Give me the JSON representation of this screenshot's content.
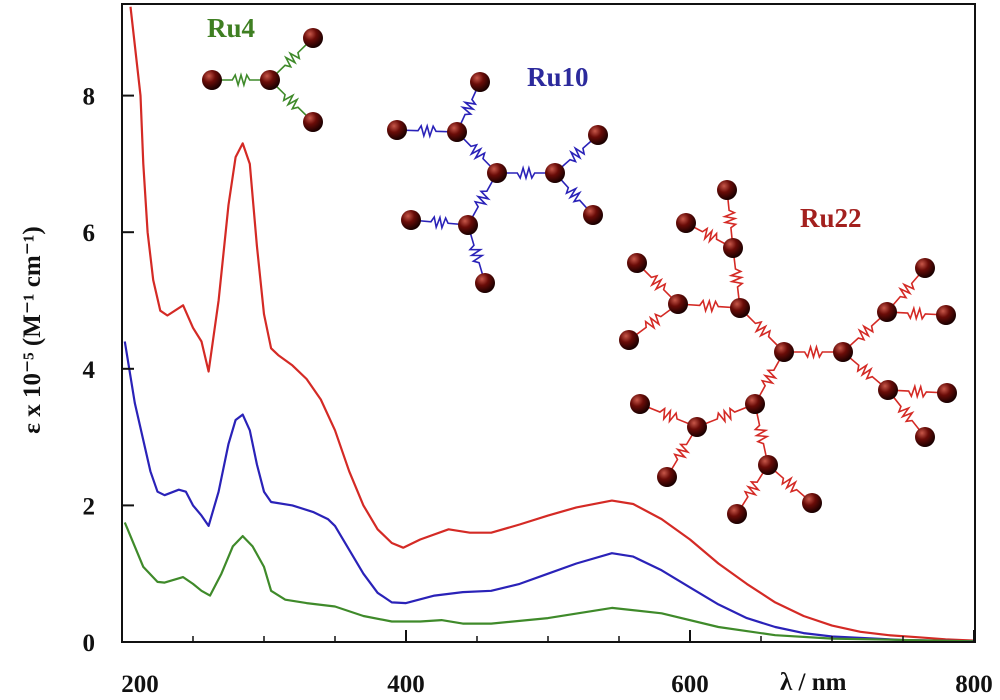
{
  "chart_data": {
    "type": "line",
    "title": "",
    "xlabel": "λ / nm",
    "ylabel": "ε x 10⁻⁵ (M⁻¹ cm⁻¹)",
    "xlim": [
      200,
      800
    ],
    "ylim": [
      0,
      9.3
    ],
    "xticks": [
      "200",
      "400",
      "600",
      "800"
    ],
    "yticks": [
      "0",
      "2",
      "4",
      "6",
      "8"
    ],
    "grid": false,
    "series": [
      {
        "name": "Ru22",
        "color": "#d42a25",
        "x": [
          206,
          213,
          215,
          218,
          222,
          227,
          232,
          243,
          250,
          256,
          261,
          268,
          275,
          280,
          285,
          290,
          295,
          300,
          305,
          310,
          320,
          330,
          340,
          350,
          360,
          370,
          380,
          390,
          398,
          410,
          430,
          445,
          460,
          480,
          500,
          520,
          545,
          560,
          580,
          600,
          620,
          640,
          660,
          680,
          700,
          720,
          740,
          760,
          780,
          800
        ],
        "y": [
          9.3,
          8.0,
          7.0,
          6.0,
          5.3,
          4.85,
          4.78,
          4.93,
          4.6,
          4.4,
          3.96,
          5.0,
          6.4,
          7.1,
          7.3,
          7.0,
          5.8,
          4.8,
          4.3,
          4.2,
          4.05,
          3.85,
          3.55,
          3.1,
          2.5,
          2.0,
          1.65,
          1.45,
          1.38,
          1.5,
          1.65,
          1.6,
          1.6,
          1.72,
          1.85,
          1.97,
          2.07,
          2.02,
          1.8,
          1.5,
          1.15,
          0.85,
          0.58,
          0.38,
          0.24,
          0.15,
          0.1,
          0.07,
          0.04,
          0.02
        ]
      },
      {
        "name": "Ru10",
        "color": "#2a22b8",
        "x": [
          202,
          209,
          220,
          225,
          230,
          240,
          245,
          250,
          256,
          261,
          268,
          275,
          280,
          285,
          290,
          295,
          300,
          305,
          320,
          335,
          345,
          350,
          360,
          370,
          380,
          390,
          400,
          420,
          440,
          460,
          480,
          500,
          520,
          545,
          560,
          580,
          600,
          620,
          640,
          660,
          680,
          700,
          750,
          800
        ],
        "y": [
          4.4,
          3.5,
          2.5,
          2.2,
          2.15,
          2.23,
          2.2,
          2.0,
          1.85,
          1.7,
          2.2,
          2.9,
          3.25,
          3.33,
          3.1,
          2.6,
          2.2,
          2.05,
          2.0,
          1.9,
          1.8,
          1.7,
          1.35,
          1.0,
          0.72,
          0.58,
          0.57,
          0.68,
          0.73,
          0.75,
          0.85,
          1.0,
          1.15,
          1.3,
          1.25,
          1.05,
          0.8,
          0.55,
          0.35,
          0.22,
          0.13,
          0.08,
          0.03,
          0.01
        ]
      },
      {
        "name": "Ru4",
        "color": "#3f8a2a",
        "x": [
          202,
          215,
          225,
          230,
          243,
          250,
          256,
          262,
          270,
          278,
          285,
          292,
          300,
          305,
          315,
          330,
          350,
          370,
          390,
          410,
          425,
          440,
          460,
          500,
          545,
          580,
          620,
          660,
          700,
          800
        ],
        "y": [
          1.75,
          1.1,
          0.88,
          0.87,
          0.95,
          0.85,
          0.75,
          0.68,
          1.0,
          1.4,
          1.55,
          1.4,
          1.1,
          0.75,
          0.62,
          0.57,
          0.52,
          0.38,
          0.3,
          0.3,
          0.32,
          0.27,
          0.27,
          0.35,
          0.5,
          0.42,
          0.22,
          0.1,
          0.05,
          0.01
        ]
      }
    ],
    "annotations": [
      {
        "text": "Ru4",
        "color": "#3f7f22"
      },
      {
        "text": "Ru10",
        "color": "#2c2a9c"
      },
      {
        "text": "Ru22",
        "color": "#a3201e"
      }
    ]
  }
}
